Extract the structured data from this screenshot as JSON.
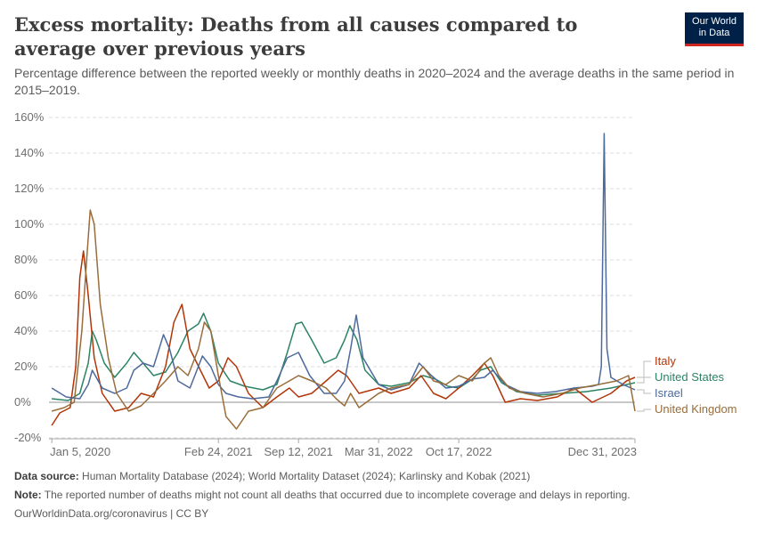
{
  "header": {
    "title": "Excess mortality: Deaths from all causes compared to average over previous years",
    "subtitle": "Percentage difference between the reported weekly or monthly deaths in 2020–2024 and the average deaths in the same period in 2015–2019.",
    "logo_line1": "Our World",
    "logo_line2": "in Data"
  },
  "footer": {
    "source_label": "Data source:",
    "source_text": "Human Mortality Database (2024); World Mortality Dataset (2024); Karlinsky and Kobak (2021)",
    "note_label": "Note:",
    "note_text": "The reported number of deaths might not count all deaths that occurred due to incomplete coverage and delays in reporting.",
    "credit": "OurWorldinData.org/coronavirus | CC BY"
  },
  "chart_data": {
    "type": "line",
    "title": "Excess mortality: Deaths from all causes compared to average over previous years",
    "subtitle": "Percentage difference between the reported weekly or monthly deaths in 2020–2024 and the average deaths in the same period in 2015–2019.",
    "xlabel": "",
    "ylabel": "",
    "y_unit": "%",
    "ylim": [
      -20,
      160
    ],
    "yticks": [
      -20,
      0,
      20,
      40,
      60,
      80,
      100,
      120,
      140,
      160
    ],
    "x_range": [
      "2019-12-29",
      "2023-12-31"
    ],
    "xticks": [
      {
        "date": "2020-01-05",
        "label": "Jan 5, 2020"
      },
      {
        "date": "2021-02-24",
        "label": "Feb 24, 2021"
      },
      {
        "date": "2021-09-12",
        "label": "Sep 12, 2021"
      },
      {
        "date": "2022-03-31",
        "label": "Mar 31, 2022"
      },
      {
        "date": "2022-10-17",
        "label": "Oct 17, 2022"
      },
      {
        "date": "2023-12-31",
        "label": "Dec 31, 2023"
      }
    ],
    "grid": "horizontal dashed",
    "legend": "right (labels at line ends)",
    "series": [
      {
        "name": "United States",
        "color": "#2c8465",
        "points": [
          [
            "2020-01-05",
            2
          ],
          [
            "2020-02-15",
            1
          ],
          [
            "2020-03-15",
            5
          ],
          [
            "2020-04-05",
            22
          ],
          [
            "2020-04-15",
            40
          ],
          [
            "2020-04-25",
            35
          ],
          [
            "2020-05-15",
            22
          ],
          [
            "2020-06-10",
            14
          ],
          [
            "2020-07-10",
            22
          ],
          [
            "2020-07-28",
            28
          ],
          [
            "2020-08-20",
            22
          ],
          [
            "2020-09-15",
            15
          ],
          [
            "2020-10-15",
            17
          ],
          [
            "2020-11-15",
            28
          ],
          [
            "2020-12-10",
            40
          ],
          [
            "2021-01-05",
            44
          ],
          [
            "2021-01-18",
            50
          ],
          [
            "2021-02-05",
            40
          ],
          [
            "2021-02-24",
            22
          ],
          [
            "2021-03-25",
            12
          ],
          [
            "2021-05-01",
            9
          ],
          [
            "2021-06-15",
            7
          ],
          [
            "2021-07-20",
            10
          ],
          [
            "2021-08-15",
            28
          ],
          [
            "2021-09-05",
            44
          ],
          [
            "2021-09-20",
            45
          ],
          [
            "2021-10-15",
            35
          ],
          [
            "2021-11-15",
            22
          ],
          [
            "2021-12-15",
            25
          ],
          [
            "2022-01-05",
            35
          ],
          [
            "2022-01-18",
            43
          ],
          [
            "2022-02-05",
            35
          ],
          [
            "2022-02-25",
            18
          ],
          [
            "2022-03-31",
            10
          ],
          [
            "2022-05-01",
            9
          ],
          [
            "2022-06-15",
            11
          ],
          [
            "2022-07-20",
            15
          ],
          [
            "2022-08-20",
            13
          ],
          [
            "2022-09-20",
            9
          ],
          [
            "2022-10-17",
            8
          ],
          [
            "2022-11-20",
            13
          ],
          [
            "2022-12-10",
            18
          ],
          [
            "2023-01-05",
            20
          ],
          [
            "2023-02-01",
            11
          ],
          [
            "2023-03-10",
            6
          ],
          [
            "2023-05-01",
            4
          ],
          [
            "2023-07-01",
            5
          ],
          [
            "2023-09-01",
            6
          ],
          [
            "2023-11-01",
            8
          ],
          [
            "2023-12-31",
            11
          ]
        ]
      },
      {
        "name": "Italy",
        "color": "#b13507",
        "points": [
          [
            "2020-01-05",
            -13
          ],
          [
            "2020-01-25",
            -6
          ],
          [
            "2020-02-20",
            -3
          ],
          [
            "2020-03-05",
            20
          ],
          [
            "2020-03-15",
            70
          ],
          [
            "2020-03-24",
            85
          ],
          [
            "2020-04-05",
            60
          ],
          [
            "2020-04-20",
            25
          ],
          [
            "2020-05-10",
            5
          ],
          [
            "2020-06-10",
            -5
          ],
          [
            "2020-07-15",
            -3
          ],
          [
            "2020-08-15",
            5
          ],
          [
            "2020-09-15",
            3
          ],
          [
            "2020-10-15",
            20
          ],
          [
            "2020-11-05",
            45
          ],
          [
            "2020-11-25",
            55
          ],
          [
            "2020-12-15",
            30
          ],
          [
            "2021-01-10",
            18
          ],
          [
            "2021-02-01",
            8
          ],
          [
            "2021-02-24",
            12
          ],
          [
            "2021-03-20",
            25
          ],
          [
            "2021-04-10",
            20
          ],
          [
            "2021-05-10",
            5
          ],
          [
            "2021-06-15",
            -3
          ],
          [
            "2021-07-20",
            3
          ],
          [
            "2021-08-20",
            8
          ],
          [
            "2021-09-12",
            3
          ],
          [
            "2021-10-15",
            5
          ],
          [
            "2021-11-20",
            12
          ],
          [
            "2021-12-20",
            18
          ],
          [
            "2022-01-10",
            15
          ],
          [
            "2022-02-10",
            5
          ],
          [
            "2022-03-31",
            8
          ],
          [
            "2022-05-01",
            5
          ],
          [
            "2022-06-15",
            8
          ],
          [
            "2022-07-15",
            15
          ],
          [
            "2022-08-15",
            5
          ],
          [
            "2022-09-15",
            2
          ],
          [
            "2022-10-17",
            8
          ],
          [
            "2022-11-20",
            15
          ],
          [
            "2022-12-20",
            22
          ],
          [
            "2023-01-10",
            15
          ],
          [
            "2023-02-10",
            0
          ],
          [
            "2023-03-20",
            2
          ],
          [
            "2023-05-01",
            1
          ],
          [
            "2023-06-20",
            3
          ],
          [
            "2023-08-01",
            8
          ],
          [
            "2023-09-15",
            0
          ],
          [
            "2023-11-01",
            5
          ],
          [
            "2023-12-10",
            12
          ],
          [
            "2023-12-31",
            14
          ]
        ]
      },
      {
        "name": "Israel",
        "color": "#4c6a9c",
        "points": [
          [
            "2020-01-05",
            8
          ],
          [
            "2020-02-10",
            3
          ],
          [
            "2020-03-15",
            2
          ],
          [
            "2020-04-05",
            10
          ],
          [
            "2020-04-15",
            18
          ],
          [
            "2020-05-10",
            8
          ],
          [
            "2020-06-10",
            5
          ],
          [
            "2020-07-10",
            8
          ],
          [
            "2020-07-28",
            18
          ],
          [
            "2020-08-20",
            22
          ],
          [
            "2020-09-15",
            20
          ],
          [
            "2020-10-10",
            38
          ],
          [
            "2020-10-25",
            30
          ],
          [
            "2020-11-15",
            12
          ],
          [
            "2020-12-15",
            8
          ],
          [
            "2021-01-15",
            26
          ],
          [
            "2021-02-05",
            20
          ],
          [
            "2021-02-24",
            10
          ],
          [
            "2021-03-15",
            5
          ],
          [
            "2021-04-15",
            3
          ],
          [
            "2021-05-20",
            2
          ],
          [
            "2021-06-30",
            3
          ],
          [
            "2021-07-20",
            12
          ],
          [
            "2021-08-15",
            25
          ],
          [
            "2021-09-12",
            28
          ],
          [
            "2021-10-10",
            15
          ],
          [
            "2021-11-15",
            5
          ],
          [
            "2021-12-15",
            5
          ],
          [
            "2022-01-05",
            12
          ],
          [
            "2022-01-20",
            30
          ],
          [
            "2022-02-03",
            49
          ],
          [
            "2022-02-20",
            25
          ],
          [
            "2022-03-31",
            10
          ],
          [
            "2022-05-01",
            7
          ],
          [
            "2022-06-15",
            10
          ],
          [
            "2022-07-10",
            22
          ],
          [
            "2022-08-10",
            15
          ],
          [
            "2022-09-15",
            8
          ],
          [
            "2022-10-17",
            9
          ],
          [
            "2022-11-20",
            13
          ],
          [
            "2022-12-20",
            14
          ],
          [
            "2023-01-10",
            18
          ],
          [
            "2023-02-10",
            10
          ],
          [
            "2023-03-20",
            6
          ],
          [
            "2023-05-01",
            5
          ],
          [
            "2023-06-15",
            6
          ],
          [
            "2023-08-01",
            8
          ],
          [
            "2023-09-15",
            9
          ],
          [
            "2023-10-01",
            10
          ],
          [
            "2023-10-08",
            20
          ],
          [
            "2023-10-15",
            151
          ],
          [
            "2023-10-22",
            30
          ],
          [
            "2023-11-01",
            14
          ],
          [
            "2023-12-01",
            10
          ],
          [
            "2023-12-31",
            7
          ]
        ]
      },
      {
        "name": "United Kingdom",
        "color": "#996d39",
        "points": [
          [
            "2020-01-05",
            -5
          ],
          [
            "2020-02-05",
            -3
          ],
          [
            "2020-03-01",
            0
          ],
          [
            "2020-03-20",
            40
          ],
          [
            "2020-04-01",
            80
          ],
          [
            "2020-04-10",
            108
          ],
          [
            "2020-04-20",
            100
          ],
          [
            "2020-05-05",
            55
          ],
          [
            "2020-05-25",
            25
          ],
          [
            "2020-06-15",
            5
          ],
          [
            "2020-07-15",
            -5
          ],
          [
            "2020-08-15",
            -2
          ],
          [
            "2020-09-15",
            5
          ],
          [
            "2020-10-15",
            12
          ],
          [
            "2020-11-15",
            20
          ],
          [
            "2020-12-10",
            15
          ],
          [
            "2021-01-05",
            30
          ],
          [
            "2021-01-20",
            45
          ],
          [
            "2021-02-05",
            40
          ],
          [
            "2021-02-24",
            15
          ],
          [
            "2021-03-15",
            -8
          ],
          [
            "2021-04-10",
            -15
          ],
          [
            "2021-05-10",
            -5
          ],
          [
            "2021-06-15",
            -3
          ],
          [
            "2021-07-20",
            8
          ],
          [
            "2021-08-20",
            12
          ],
          [
            "2021-09-12",
            15
          ],
          [
            "2021-10-15",
            12
          ],
          [
            "2021-11-20",
            8
          ],
          [
            "2021-12-15",
            2
          ],
          [
            "2022-01-05",
            -2
          ],
          [
            "2022-01-20",
            5
          ],
          [
            "2022-02-10",
            -3
          ],
          [
            "2022-03-31",
            5
          ],
          [
            "2022-05-01",
            8
          ],
          [
            "2022-06-15",
            10
          ],
          [
            "2022-07-20",
            20
          ],
          [
            "2022-08-15",
            12
          ],
          [
            "2022-09-15",
            10
          ],
          [
            "2022-10-17",
            15
          ],
          [
            "2022-11-20",
            12
          ],
          [
            "2022-12-20",
            22
          ],
          [
            "2023-01-05",
            25
          ],
          [
            "2023-01-25",
            15
          ],
          [
            "2023-02-20",
            8
          ],
          [
            "2023-04-01",
            5
          ],
          [
            "2023-05-15",
            3
          ],
          [
            "2023-07-01",
            5
          ],
          [
            "2023-08-15",
            8
          ],
          [
            "2023-10-01",
            10
          ],
          [
            "2023-11-15",
            12
          ],
          [
            "2023-12-15",
            15
          ],
          [
            "2023-12-31",
            -5
          ]
        ]
      }
    ]
  }
}
